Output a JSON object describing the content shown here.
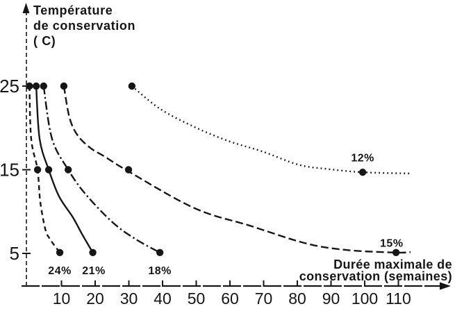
{
  "figure": {
    "background": "#ffffff",
    "ink": "#161616"
  },
  "title": {
    "line1": "Température",
    "line2": "de conservation",
    "line3": "( C)"
  },
  "x_axis_label": {
    "line1": "Durée maximale de",
    "line2": "conservation (semaines)"
  },
  "chart_data": {
    "type": "line",
    "title": "",
    "xlabel": "Durée maximale de conservation (semaines)",
    "ylabel": "Température de conservation ( C)",
    "x_ticks": [
      10,
      20,
      30,
      40,
      50,
      60,
      70,
      80,
      90,
      100,
      110
    ],
    "y_ticks": [
      25,
      15,
      5
    ],
    "xlim": [
      0,
      125
    ],
    "ylim": [
      0,
      30
    ],
    "grid": false,
    "legend_position": "inline-annotations",
    "series": [
      {
        "name": "24%",
        "style": "dashed",
        "markers": [
          [
            0.5,
            25
          ],
          [
            2.9,
            15
          ],
          [
            9.5,
            5.1
          ]
        ],
        "path": [
          [
            0.5,
            25
          ],
          [
            1.0,
            18.7
          ],
          [
            2.9,
            15
          ],
          [
            3.7,
            11.2
          ],
          [
            5.2,
            7.9
          ],
          [
            6.6,
            6.7
          ],
          [
            9.5,
            5.1
          ]
        ],
        "label": {
          "text": "24%",
          "x": 9.5,
          "y": 2.5
        }
      },
      {
        "name": "21%",
        "style": "solid",
        "markers": [
          [
            2.5,
            25
          ],
          [
            6.2,
            15
          ],
          [
            19.3,
            5.1
          ]
        ],
        "path": [
          [
            2.5,
            25
          ],
          [
            3.5,
            18.7
          ],
          [
            6.2,
            15
          ],
          [
            9.3,
            11.8
          ],
          [
            13.4,
            9.3
          ],
          [
            16.1,
            7.3
          ],
          [
            19.3,
            5.1
          ]
        ],
        "label": {
          "text": "21%",
          "x": 19.6,
          "y": 2.5
        }
      },
      {
        "name": "18%",
        "style": "dashdot",
        "markers": [
          [
            4.7,
            25
          ],
          [
            12,
            15
          ],
          [
            39.2,
            5.1
          ]
        ],
        "path": [
          [
            4.7,
            25
          ],
          [
            7.2,
            18.7
          ],
          [
            12,
            15
          ],
          [
            17.1,
            12.1
          ],
          [
            25.2,
            8.7
          ],
          [
            32,
            6.7
          ],
          [
            39.2,
            5.1
          ]
        ],
        "label": {
          "text": "18%",
          "x": 39.2,
          "y": 2.5
        }
      },
      {
        "name": "15%",
        "style": "dashed-long",
        "markers": [
          [
            10.7,
            25
          ],
          [
            29.9,
            15
          ],
          [
            109.3,
            5.1
          ]
        ],
        "path": [
          [
            10.7,
            25
          ],
          [
            12.4,
            21.2
          ],
          [
            14.8,
            19.1
          ],
          [
            18.6,
            17.6
          ],
          [
            22.7,
            16.6
          ],
          [
            29.9,
            14.8
          ],
          [
            49.5,
            10.4
          ],
          [
            66,
            8.3
          ],
          [
            82.5,
            6.2
          ],
          [
            94.8,
            5.4
          ],
          [
            109.3,
            5.1
          ],
          [
            113.6,
            5.15
          ]
        ],
        "label": {
          "text": "15%",
          "x": 108,
          "y": 5.8
        }
      },
      {
        "name": "12%",
        "style": "dotted",
        "markers": [
          [
            30.9,
            25
          ],
          [
            99.4,
            14.7
          ]
        ],
        "path": [
          [
            30.9,
            25
          ],
          [
            39.2,
            22.3
          ],
          [
            49.5,
            20.1
          ],
          [
            59.8,
            18.4
          ],
          [
            69.5,
            17.2
          ],
          [
            80.4,
            15.6
          ],
          [
            88.7,
            15.1
          ],
          [
            99.4,
            14.7
          ],
          [
            113.4,
            14.55
          ]
        ],
        "label": {
          "text": "12%",
          "x": 99.4,
          "y": 16.0
        }
      }
    ]
  }
}
